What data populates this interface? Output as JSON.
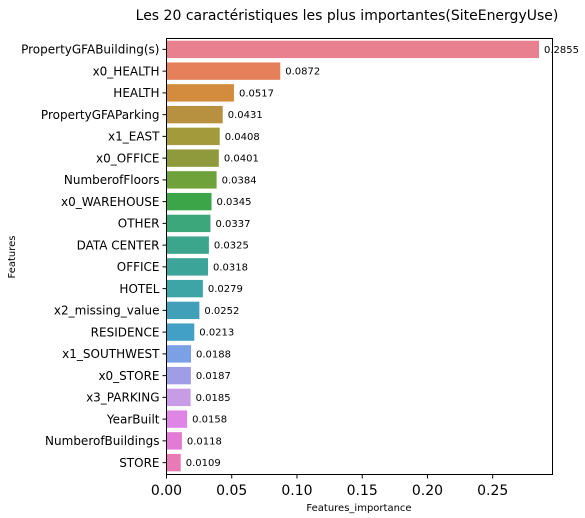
{
  "chart_data": {
    "type": "bar",
    "orientation": "horizontal",
    "title": "Les 20 caractéristiques les plus importantes(SiteEnergyUse)",
    "xlabel": "Features_importance",
    "ylabel": "Features",
    "xlim": [
      0,
      0.2855
    ],
    "xticks": [
      "0.00",
      "0.05",
      "0.10",
      "0.15",
      "0.20",
      "0.25"
    ],
    "grid": false,
    "categories": [
      "PropertyGFABuilding(s)",
      "x0_HEALTH",
      "HEALTH",
      "PropertyGFAParking",
      "x1_EAST",
      "x0_OFFICE",
      "NumberofFloors",
      "x0_WAREHOUSE",
      "OTHER",
      "DATA CENTER",
      "OFFICE",
      "HOTEL",
      "x2_missing_value",
      "RESIDENCE",
      "x1_SOUTHWEST",
      "x0_STORE",
      "x3_PARKING",
      "YearBuilt",
      "NumberofBuildings",
      "STORE"
    ],
    "values": [
      0.2855,
      0.0872,
      0.0517,
      0.0431,
      0.0408,
      0.0401,
      0.0384,
      0.0345,
      0.0337,
      0.0325,
      0.0318,
      0.0279,
      0.0252,
      0.0213,
      0.0188,
      0.0187,
      0.0185,
      0.0158,
      0.0118,
      0.0109
    ],
    "data_labels": [
      "0.2855",
      "0.0872",
      "0.0517",
      "0.0431",
      "0.0408",
      "0.0401",
      "0.0384",
      "0.0345",
      "0.0337",
      "0.0325",
      "0.0318",
      "0.0279",
      "0.0252",
      "0.0213",
      "0.0188",
      "0.0187",
      "0.0185",
      "0.0158",
      "0.0118",
      "0.0109"
    ],
    "colors": [
      "#e8808f",
      "#e5805a",
      "#d38b3e",
      "#b79040",
      "#a39a3b",
      "#8e9a3b",
      "#6fa23b",
      "#3ba547",
      "#3ca77a",
      "#3ca68c",
      "#3ca499",
      "#3ea5a7",
      "#41a0b8",
      "#42a0c6",
      "#7ba0e6",
      "#9f9de6",
      "#c79be6",
      "#df85e6",
      "#e37ad5",
      "#e87ab5"
    ]
  }
}
